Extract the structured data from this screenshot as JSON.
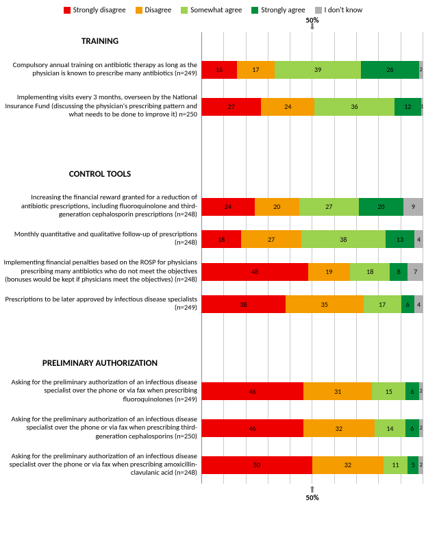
{
  "colors": {
    "strongly_disagree": "#ee0000",
    "disagree": "#f59c00",
    "somewhat_agree": "#9bd24e",
    "strongly_agree": "#008e3c",
    "dont_know": "#b0b0b0",
    "grid": "#c9c9c9"
  },
  "legend": [
    {
      "key": "strongly_disagree",
      "label": "Strongly disagree"
    },
    {
      "key": "disagree",
      "label": "Disagree"
    },
    {
      "key": "somewhat_agree",
      "label": "Somewhat agree"
    },
    {
      "key": "strongly_agree",
      "label": "Strongly agree"
    },
    {
      "key": "dont_know",
      "label": "I don't know"
    }
  ],
  "fifty_label": "50%",
  "sections": [
    {
      "title": "TRAINING",
      "rows": [
        {
          "label": "Compulsory annual training on antibiotic therapy as long as the physician is known to prescribe many antibiotics (n=249)",
          "values": {
            "strongly_disagree": 16,
            "disagree": 17,
            "somewhat_agree": 39,
            "strongly_agree": 26,
            "dont_know": 2
          }
        },
        {
          "label": "Implementing visits every 3 months, overseen by the National Insurance Fund (discussing the physician's prescribing pattern and what needs to be done to improve it) n=250",
          "values": {
            "strongly_disagree": 27,
            "disagree": 24,
            "somewhat_agree": 36,
            "strongly_agree": 12,
            "dont_know": 1
          }
        }
      ]
    },
    {
      "title": "CONTROL TOOLS",
      "rows": [
        {
          "label": "Increasing the financial reward granted for a reduction of antibiotic prescriptions, including fluoroquinolone and third-generation cephalosporin prescriptions (n=248)",
          "values": {
            "strongly_disagree": 24,
            "disagree": 20,
            "somewhat_agree": 27,
            "strongly_agree": 20,
            "dont_know": 9
          }
        },
        {
          "label": "Monthly quantitative and qualitative follow-up of prescriptions (n=248)",
          "values": {
            "strongly_disagree": 18,
            "disagree": 27,
            "somewhat_agree": 38,
            "strongly_agree": 13,
            "dont_know": 4
          }
        },
        {
          "label": "Implementing financial penalties based on the ROSP for physicians prescribing many antibiotics who do not meet the objectives (bonuses would be kept if physicians meet the objectives) (n=248)",
          "values": {
            "strongly_disagree": 48,
            "disagree": 19,
            "somewhat_agree": 18,
            "strongly_agree": 8,
            "dont_know": 7
          }
        },
        {
          "label": "Prescriptions to be later approved by infectious disease specialists (n=249)",
          "values": {
            "strongly_disagree": 38,
            "disagree": 35,
            "somewhat_agree": 17,
            "strongly_agree": 6,
            "dont_know": 4
          }
        }
      ]
    },
    {
      "title": "PRELIMINARY AUTHORIZATION",
      "rows": [
        {
          "label": "Asking for the preliminary authorization of an infectious disease specialist over the phone or via fax when prescribing fluoroquinolones (n=249)",
          "values": {
            "strongly_disagree": 46,
            "disagree": 31,
            "somewhat_agree": 15,
            "strongly_agree": 6,
            "dont_know": 2
          }
        },
        {
          "label": "Asking for the preliminary authorization of an infectious disease specialist over the phone or via fax when prescribing third-generation cephalosporins (n=250)",
          "values": {
            "strongly_disagree": 46,
            "disagree": 32,
            "somewhat_agree": 14,
            "strongly_agree": 6,
            "dont_know": 2
          }
        },
        {
          "label": "Asking for the preliminary authorization of an infectious disease specialist over the phone or via fax when prescribing amoxicillin-clavulanic acid (n=248)",
          "values": {
            "strongly_disagree": 50,
            "disagree": 32,
            "somewhat_agree": 11,
            "strongly_agree": 5,
            "dont_know": 2
          }
        }
      ]
    }
  ]
}
